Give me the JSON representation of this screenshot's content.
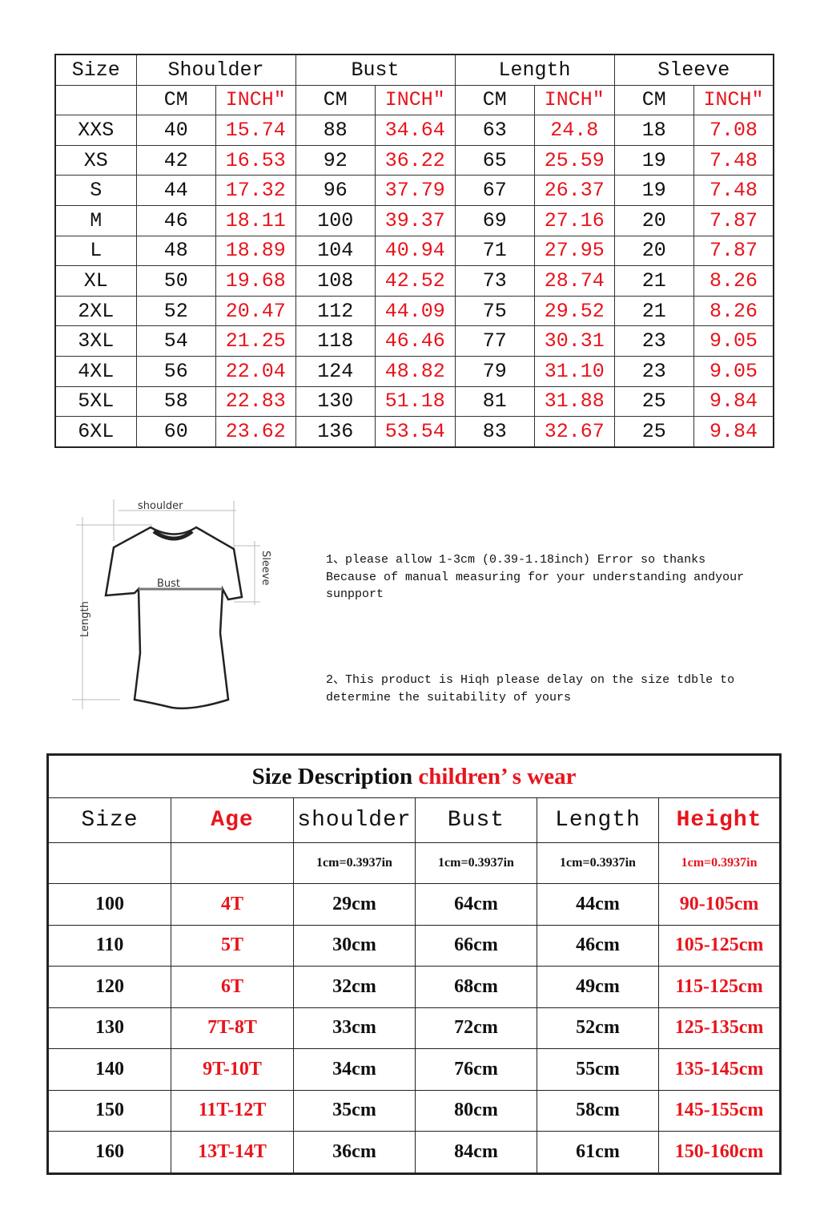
{
  "adult_table": {
    "headers": [
      "Size",
      "Shoulder",
      "Bust",
      "Length",
      "Sleeve"
    ],
    "units": [
      "CM",
      "INCH″"
    ],
    "rows": [
      [
        "XXS",
        "40",
        "15.74",
        "88",
        "34.64",
        "63",
        "24.8",
        "18",
        "7.08"
      ],
      [
        "XS",
        "42",
        "16.53",
        "92",
        "36.22",
        "65",
        "25.59",
        "19",
        "7.48"
      ],
      [
        "S",
        "44",
        "17.32",
        "96",
        "37.79",
        "67",
        "26.37",
        "19",
        "7.48"
      ],
      [
        "M",
        "46",
        "18.11",
        "100",
        "39.37",
        "69",
        "27.16",
        "20",
        "7.87"
      ],
      [
        "L",
        "48",
        "18.89",
        "104",
        "40.94",
        "71",
        "27.95",
        "20",
        "7.87"
      ],
      [
        "XL",
        "50",
        "19.68",
        "108",
        "42.52",
        "73",
        "28.74",
        "21",
        "8.26"
      ],
      [
        "2XL",
        "52",
        "20.47",
        "112",
        "44.09",
        "75",
        "29.52",
        "21",
        "8.26"
      ],
      [
        "3XL",
        "54",
        "21.25",
        "118",
        "46.46",
        "77",
        "30.31",
        "23",
        "9.05"
      ],
      [
        "4XL",
        "56",
        "22.04",
        "124",
        "48.82",
        "79",
        "31.10",
        "23",
        "9.05"
      ],
      [
        "5XL",
        "58",
        "22.83",
        "130",
        "51.18",
        "81",
        "31.88",
        "25",
        "9.84"
      ],
      [
        "6XL",
        "60",
        "23.62",
        "136",
        "53.54",
        "83",
        "32.67",
        "25",
        "9.84"
      ]
    ]
  },
  "figure": {
    "shoulder": "shoulder",
    "bust": "Bust",
    "length": "Length",
    "sleeve": "Sleeve"
  },
  "notes": {
    "note1_line1": "1、please allow 1-3cm (0.39-1.18inch) Error so thanks",
    "note1_line2": "Because of manual measuring for your understanding andyour",
    "note1_line3": "sunpport",
    "note2_line1": "2、This product is Hiqh please delay on the size tdble to",
    "note2_line2": "determine the suitability of yours"
  },
  "kids_table": {
    "title_black": "Size Description ",
    "title_red": "children’ s wear",
    "headers": [
      "Size",
      "Age",
      "shoulder",
      "Bust",
      "Length",
      "Height"
    ],
    "units": [
      "",
      "",
      "1cm=0.3937in",
      "1cm=0.3937in",
      "1cm=0.3937in",
      "1cm=0.3937in"
    ],
    "rows": [
      [
        "100",
        "4T",
        "29cm",
        "64cm",
        "44cm",
        "90-105cm"
      ],
      [
        "110",
        "5T",
        "30cm",
        "66cm",
        "46cm",
        "105-125cm"
      ],
      [
        "120",
        "6T",
        "32cm",
        "68cm",
        "49cm",
        "115-125cm"
      ],
      [
        "130",
        "7T-8T",
        "33cm",
        "72cm",
        "52cm",
        "125-135cm"
      ],
      [
        "140",
        "9T-10T",
        "34cm",
        "76cm",
        "55cm",
        "135-145cm"
      ],
      [
        "150",
        "11T-12T",
        "35cm",
        "80cm",
        "58cm",
        "145-155cm"
      ],
      [
        "160",
        "13T-14T",
        "36cm",
        "84cm",
        "61cm",
        "150-160cm"
      ]
    ]
  },
  "colors": {
    "accent_red": "#e8141c",
    "text": "#111111"
  }
}
